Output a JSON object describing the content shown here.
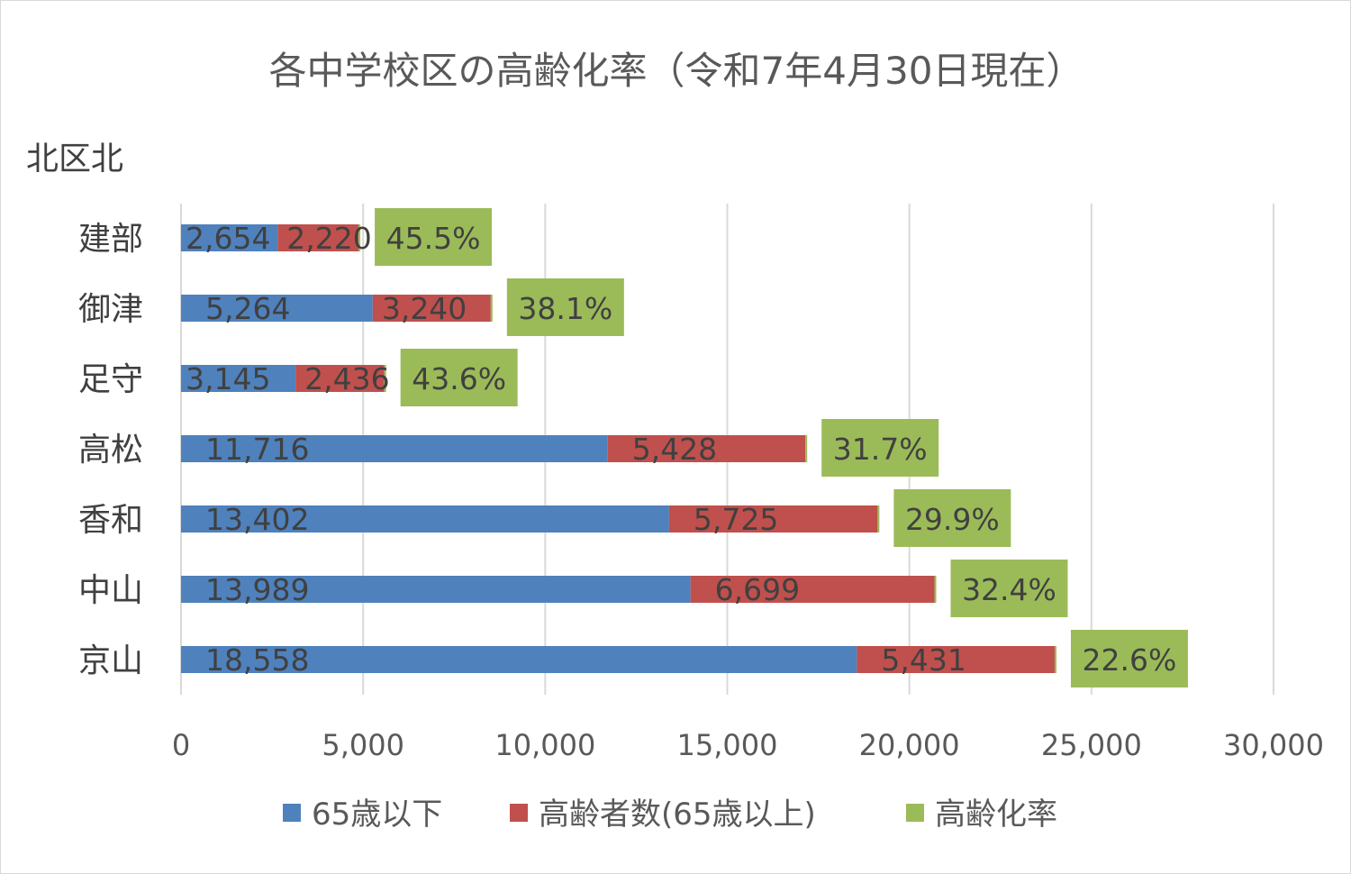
{
  "chart_data": {
    "type": "bar",
    "orientation": "horizontal",
    "stacked": true,
    "title": "各中学校区の高齢化率（令和7年4月30日現在）",
    "subtitle": "北区北",
    "categories": [
      "建部",
      "御津",
      "足守",
      "高松",
      "香和",
      "中山",
      "京山"
    ],
    "series": [
      {
        "name": "65歳以下",
        "color": "#4F81BD",
        "values": [
          2654,
          5264,
          3145,
          11716,
          13402,
          13989,
          18558
        ],
        "labels": [
          "2,654",
          "5,264",
          "3,145",
          "11,716",
          "13,402",
          "13,989",
          "18,558"
        ]
      },
      {
        "name": "高齢者数(65歳以上)",
        "color": "#C0504D",
        "values": [
          2220,
          3240,
          2436,
          5428,
          5725,
          6699,
          5431
        ],
        "labels": [
          "2,220",
          "3,240",
          "2,436",
          "5,428",
          "5,725",
          "6,699",
          "5,431"
        ]
      },
      {
        "name": "高齢化率",
        "color": "#9BBB59",
        "values": [
          45.5,
          38.1,
          43.6,
          31.7,
          29.9,
          32.4,
          22.6
        ],
        "labels": [
          "45.5%",
          "38.1%",
          "43.6%",
          "31.7%",
          "29.9%",
          "32.4%",
          "22.6%"
        ]
      }
    ],
    "xlim": [
      0,
      30000
    ],
    "xticks": [
      "0",
      "5,000",
      "10,000",
      "15,000",
      "20,000",
      "25,000",
      "30,000"
    ],
    "grid": true,
    "legend": "bottom"
  }
}
